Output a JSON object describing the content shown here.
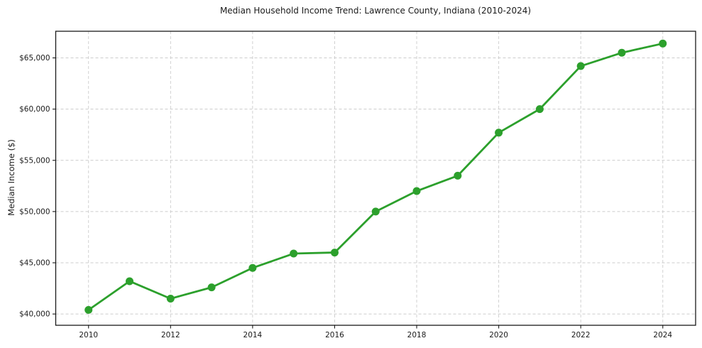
{
  "chart_data": {
    "type": "line",
    "title": "Median Household Income Trend: Lawrence County, Indiana (2010-2024)",
    "xlabel": "",
    "ylabel": "Median Income ($)",
    "x": [
      2010,
      2011,
      2012,
      2013,
      2014,
      2015,
      2016,
      2017,
      2018,
      2019,
      2020,
      2021,
      2022,
      2023,
      2024
    ],
    "y": [
      40400,
      43200,
      41500,
      42600,
      44500,
      45900,
      46000,
      50000,
      52000,
      53500,
      57700,
      60000,
      64200,
      65500,
      66400
    ],
    "xlim": [
      2009.2,
      2024.8
    ],
    "ylim": [
      38900,
      67600
    ],
    "x_ticks": [
      2010,
      2012,
      2014,
      2016,
      2018,
      2020,
      2022,
      2024
    ],
    "x_tick_labels": [
      "2010",
      "2012",
      "2014",
      "2016",
      "2018",
      "2020",
      "2022",
      "2024"
    ],
    "y_ticks": [
      40000,
      45000,
      50000,
      55000,
      60000,
      65000
    ],
    "y_tick_labels": [
      "$40,000",
      "$45,000",
      "$50,000",
      "$55,000",
      "$60,000",
      "$65,000"
    ],
    "grid": true,
    "grid_style": "dashed",
    "legend": false,
    "line_color": "#2ca02c",
    "marker": "circle"
  },
  "colors": {
    "grid": "#cccccc",
    "spine": "#1a1a1a",
    "text": "#1a1a1a",
    "background": "#ffffff"
  }
}
